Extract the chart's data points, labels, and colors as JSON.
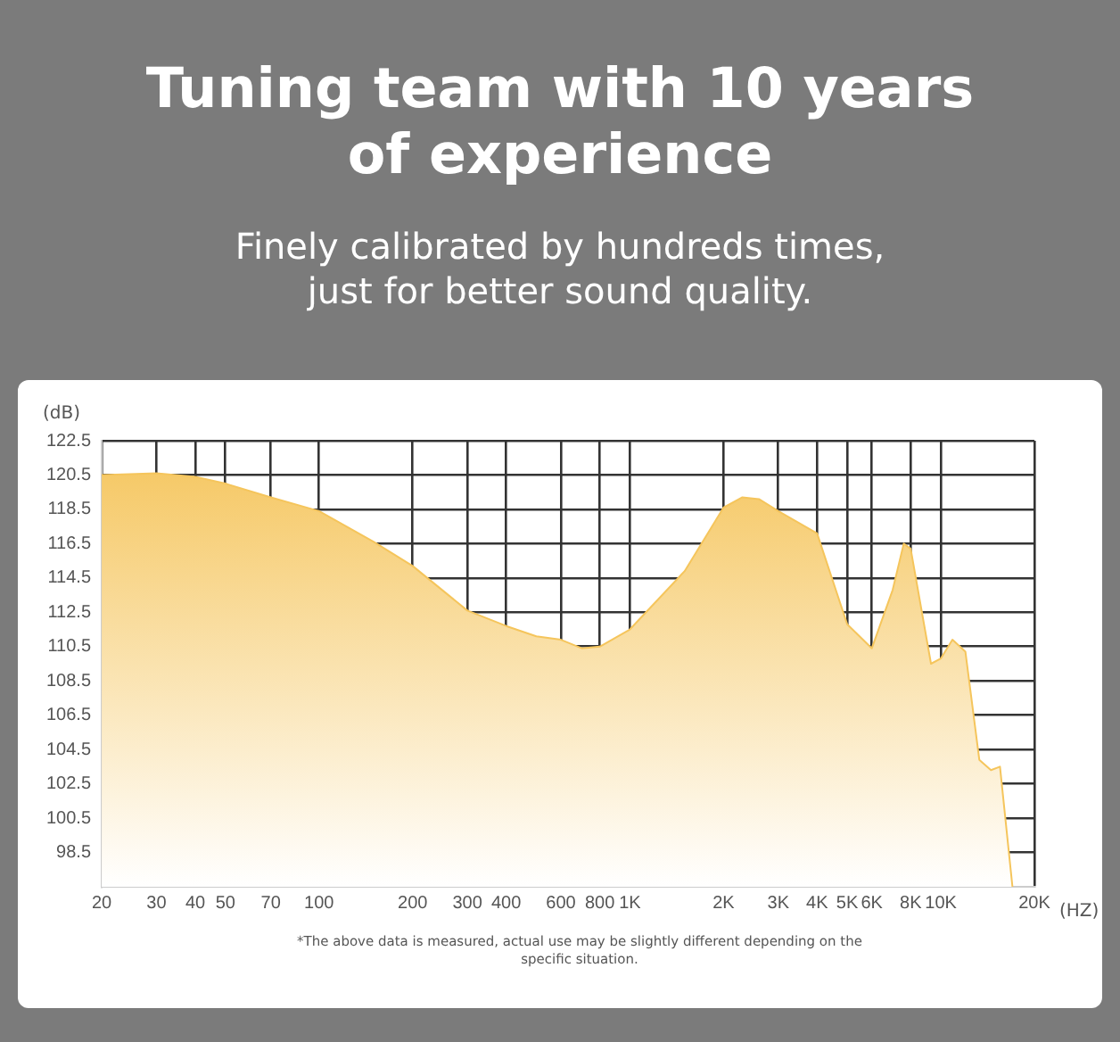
{
  "chart_data": {
    "type": "area",
    "title": "Tuning team with 10 years of experience",
    "subtitle": "Finely calibrated by hundreds times, just for better sound quality.",
    "xlabel": "(HZ)",
    "ylabel": "(dB)",
    "log": "x",
    "grid": true,
    "legend": false,
    "xlim": [
      20,
      20000
    ],
    "ylim": [
      96.5,
      122.5
    ],
    "xticks": [
      20,
      30,
      40,
      50,
      70,
      100,
      200,
      {
        "value": 300,
        "label": "300"
      },
      400,
      600,
      800,
      {
        "value": 1000,
        "label": "1K"
      },
      {
        "value": 2000,
        "label": "2K"
      },
      {
        "value": 3000,
        "label": "3K"
      },
      {
        "value": 4000,
        "label": "4K"
      },
      {
        "value": 5000,
        "label": "5K"
      },
      {
        "value": 6000,
        "label": "6K"
      },
      {
        "value": 8000,
        "label": "8K"
      },
      {
        "value": 10000,
        "label": "10K"
      },
      {
        "value": 20000,
        "label": "20K"
      }
    ],
    "yticks": [
      98.5,
      100.5,
      102.5,
      104.5,
      106.5,
      108.5,
      110.5,
      112.5,
      114.5,
      116.5,
      118.5,
      120.5,
      122.5
    ],
    "series": [
      {
        "color": "#f5c55c",
        "x": [
          20,
          30,
          40,
          50,
          70,
          100,
          150,
          200,
          300,
          400,
          500,
          600,
          700,
          800,
          1000,
          1500,
          2000,
          2300,
          2600,
          3000,
          4000,
          5000,
          6000,
          7000,
          7600,
          8000,
          9300,
          10000,
          10900,
          12000,
          13300,
          14500,
          15500,
          17000
        ],
        "values": [
          120.5,
          120.6,
          120.4,
          120.0,
          119.2,
          118.4,
          116.6,
          115.2,
          112.6,
          111.7,
          111.1,
          110.9,
          110.4,
          110.5,
          111.5,
          114.9,
          118.6,
          119.2,
          119.1,
          118.4,
          117.1,
          111.8,
          110.4,
          113.8,
          116.5,
          116.2,
          109.5,
          109.8,
          110.9,
          110.2,
          103.9,
          103.3,
          103.5,
          96.5
        ]
      }
    ],
    "annotations": [
      "*The above data is measured, actual use may be slightly different depending on the specific situation."
    ]
  }
}
